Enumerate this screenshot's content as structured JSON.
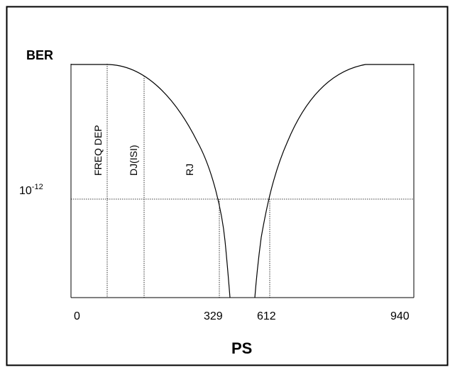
{
  "labels": {
    "y_axis": "BER",
    "x_axis": "PS",
    "ber_level_base": "10",
    "ber_level_exp": "-12",
    "region_freq_dep": "FREQ DEP",
    "region_dj": "DJ(ISI)",
    "region_rj": "RJ"
  },
  "x_ticks": [
    "0",
    "329",
    "612",
    "940"
  ],
  "colors": {
    "ink": "#000000",
    "background": "#ffffff"
  }
}
